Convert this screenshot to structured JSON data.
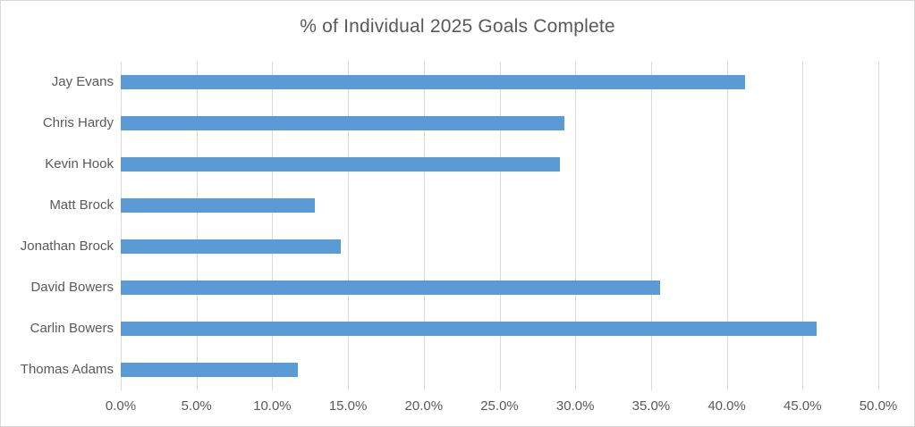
{
  "chart_data": {
    "type": "bar",
    "orientation": "horizontal",
    "title": "% of Individual 2025 Goals Complete",
    "categories": [
      "Jay Evans",
      "Chris Hardy",
      "Kevin Hook",
      "Matt Brock",
      "Jonathan Brock",
      "David Bowers",
      "Carlin Bowers",
      "Thomas Adams"
    ],
    "values": [
      41.2,
      29.3,
      29.0,
      12.8,
      14.5,
      35.6,
      45.9,
      11.7
    ],
    "unit": "%",
    "xlabel": "",
    "ylabel": "",
    "xlim": [
      0,
      50
    ],
    "xtick_labels": [
      "0.0%",
      "5.0%",
      "10.0%",
      "15.0%",
      "20.0%",
      "25.0%",
      "30.0%",
      "35.0%",
      "40.0%",
      "45.0%",
      "50.0%"
    ],
    "grid": "vertical-only",
    "legend": "none",
    "category_order": "top-to-bottom",
    "colors": {
      "bar": "#5B9BD5",
      "gridline": "#D9D9D9",
      "text": "#595959",
      "canvas_border": "#D9D9D9",
      "background": "#FFFFFF"
    }
  }
}
